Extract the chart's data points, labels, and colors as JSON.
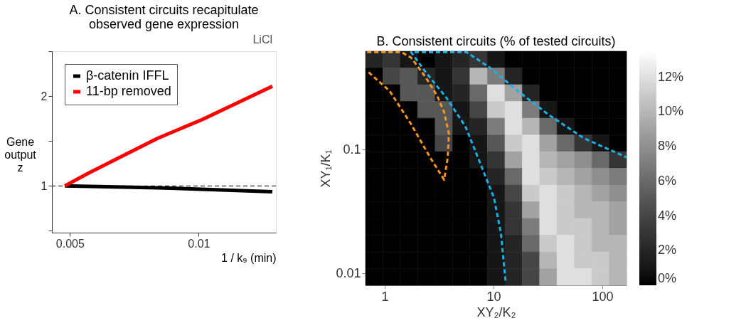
{
  "chart_data": [
    {
      "type": "line",
      "title": "A. Consistent circuits recapitulate\nobserved gene expression",
      "ylabel": "Gene\noutput\nz",
      "xlabel": "1 / k₉ (min)",
      "xlim": [
        0.0043,
        0.013
      ],
      "xticks": [
        0.005,
        0.01
      ],
      "ylim": [
        0.48,
        2.5
      ],
      "yticks": [
        {
          "value": 0.5,
          "label": null
        },
        1,
        {
          "value": 1.5,
          "label": null
        },
        2,
        {
          "value": 2.5,
          "label": null
        }
      ],
      "series": [
        {
          "name": "β-catenin IFFL",
          "color": "#000000",
          "x": [
            0.0048,
            0.0084,
            0.01286
          ],
          "values": [
            1.0,
            0.98,
            0.935
          ]
        },
        {
          "name": "11-bp removed",
          "color": "#ff0000",
          "x": [
            0.0048,
            0.0057,
            0.00667,
            0.0084,
            0.01014,
            0.01286
          ],
          "values": [
            1.0,
            1.14,
            1.28,
            1.53,
            1.74,
            2.11
          ]
        }
      ],
      "ref_lines": [
        {
          "axis": "y",
          "value": 1,
          "label": null,
          "line_style": "dashed",
          "color": "#000000"
        }
      ],
      "legend": "top left",
      "annotations": [
        "LiCl"
      ],
      "grid": false
    },
    {
      "type": "heatmap",
      "title": "B. Consistent circuits (% of tested circuits)",
      "xlabel": "XY₂/K₂",
      "ylabel": "XY₁/K₁",
      "log": "xy",
      "xlim": [
        0.667,
        167
      ],
      "xticks": [
        1,
        10,
        100
      ],
      "ylim": [
        0.008,
        0.621
      ],
      "yticks": [
        0.01,
        0.1
      ],
      "x": [
        0.8,
        1.16,
        1.67,
        2.42,
        3.5,
        5.06,
        7.3,
        10.6,
        15.3,
        22.1,
        31.9,
        46.1,
        66.7,
        96.4,
        139
      ],
      "y": [
        0.531,
        0.39,
        0.285,
        0.209,
        0.153,
        0.112,
        0.0823,
        0.0603,
        0.0442,
        0.0324,
        0.0237,
        0.0174,
        0.0127,
        0.00934
      ],
      "cells": [
        [
          2,
          3,
          1,
          0,
          1,
          2,
          3,
          1,
          0,
          0,
          0,
          0,
          0,
          0,
          0
        ],
        [
          0,
          4,
          5,
          2,
          1,
          3,
          10,
          7,
          2,
          0,
          0,
          0,
          0,
          0,
          0
        ],
        [
          0,
          0,
          5,
          5,
          1,
          2,
          6,
          12,
          9,
          2,
          0,
          0,
          0,
          0,
          0
        ],
        [
          0,
          0,
          0,
          5,
          5,
          1,
          4,
          11,
          12,
          7,
          1,
          0,
          0,
          0,
          0
        ],
        [
          0,
          0,
          0,
          0,
          5,
          1,
          2,
          7,
          12,
          10,
          6,
          1,
          0,
          0,
          0
        ],
        [
          0,
          0,
          0,
          0,
          4,
          0,
          1,
          5,
          11,
          12,
          9,
          6,
          3,
          1,
          0
        ],
        [
          0,
          0,
          0,
          0,
          0,
          0,
          1,
          3,
          9,
          12,
          10,
          9,
          8,
          6,
          3
        ],
        [
          0,
          0,
          0,
          0,
          0,
          0,
          0,
          2,
          6,
          12,
          11,
          10,
          9,
          8,
          7
        ],
        [
          0,
          0,
          0,
          0,
          0,
          0,
          0,
          1,
          4,
          11,
          12,
          11,
          10,
          9,
          8
        ],
        [
          0,
          0,
          0,
          0,
          0,
          0,
          0,
          1,
          3,
          9,
          12,
          11,
          10,
          10,
          9
        ],
        [
          0,
          0,
          0,
          0,
          0,
          0,
          0,
          1,
          3,
          7,
          12,
          11,
          11,
          10,
          9
        ],
        [
          0,
          0,
          0,
          0,
          0,
          0,
          0,
          1,
          2,
          6,
          11,
          12,
          11,
          10,
          10
        ],
        [
          0,
          0,
          0,
          0,
          0,
          0,
          0,
          1,
          2,
          4,
          10,
          12,
          11,
          11,
          10
        ],
        [
          0,
          0,
          0,
          0,
          0,
          0,
          0,
          1,
          2,
          4,
          9,
          12,
          12,
          11,
          10
        ]
      ],
      "clim": [
        0,
        13.5
      ],
      "cticks": [
        {
          "value": 0,
          "label": "0%"
        },
        {
          "value": 2,
          "label": "2%"
        },
        {
          "value": 4,
          "label": "4%"
        },
        {
          "value": 6,
          "label": "6%"
        },
        {
          "value": 8,
          "label": "8%"
        },
        {
          "value": 10,
          "label": "10%"
        },
        {
          "value": 12,
          "label": "12%"
        }
      ],
      "colors": [
        "#000000",
        "#ffffff"
      ],
      "series": [
        {
          "type": "line",
          "color": "#f7941d",
          "line_style": "dashed",
          "x": [
            0.69,
            1.43,
            1.75,
            2.36,
            3.03,
            3.52,
            3.89,
            3.8,
            3.52,
            2.61,
            1.75,
            1.11,
            0.69
          ],
          "values": [
            0.61,
            0.61,
            0.551,
            0.387,
            0.272,
            0.2,
            0.134,
            0.0865,
            0.0569,
            0.0865,
            0.16,
            0.297,
            0.43
          ]
        },
        {
          "type": "line",
          "color": "#1ab0e8",
          "line_style": "dashed",
          "x": [
            12.9,
            11.7,
            10.1,
            7.48,
            5.53,
            3.7,
            2.36,
            1.75,
            5.67,
            9.14,
            16.7,
            32.0,
            67.9,
            167
          ],
          "values": [
            0.00873,
            0.0211,
            0.0408,
            0.0791,
            0.153,
            0.261,
            0.425,
            0.61,
            0.61,
            0.462,
            0.297,
            0.191,
            0.123,
            0.0865
          ]
        }
      ],
      "grid": false
    }
  ]
}
